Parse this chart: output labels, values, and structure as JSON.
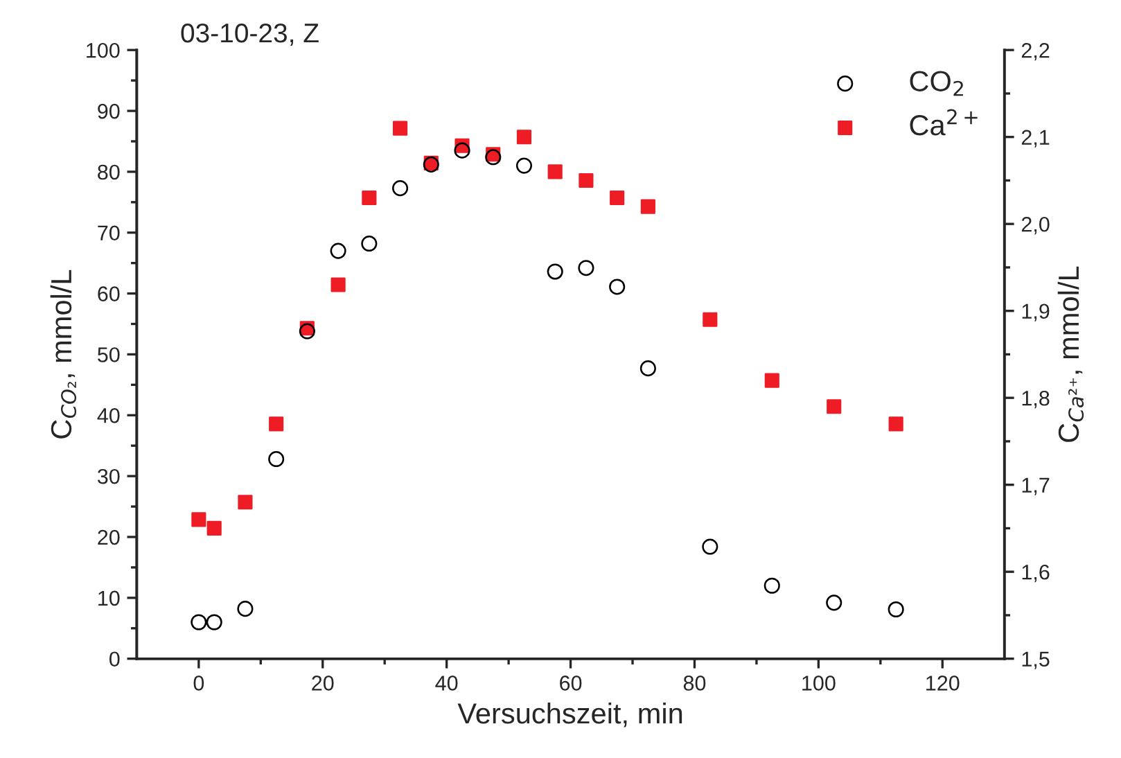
{
  "chart_data": {
    "type": "scatter",
    "title": "03-10-23, Z",
    "xlabel": "Versuchszeit, min",
    "ylabel": "C$_{CO₂}$, mmol/L",
    "y2label": "C$_{Ca²⁺}$, mmol/L",
    "x": [
      0,
      2.5,
      7.5,
      12.5,
      17.5,
      22.5,
      27.5,
      32.5,
      37.5,
      42.5,
      47.5,
      52.5,
      57.5,
      62.5,
      67.5,
      72.5,
      82.5,
      92.5,
      102.5,
      112.5
    ],
    "series": [
      {
        "name": "CO$_{2}$",
        "color": "#000000",
        "marker": "circle",
        "values": [
          6,
          6,
          8.2,
          32.8,
          53.8,
          67,
          68.2,
          77.3,
          81.2,
          83.5,
          82.4,
          81,
          63.6,
          64.2,
          61.1,
          47.7,
          18.4,
          12,
          9.2,
          8.1
        ]
      },
      {
        "name": "Ca$^{2+}$",
        "color": "#ee1c25",
        "marker": "square",
        "axis": "y2",
        "values": [
          1.66,
          1.65,
          1.68,
          1.77,
          1.88,
          1.93,
          2.03,
          2.11,
          2.07,
          2.09,
          2.08,
          2.1,
          2.06,
          2.05,
          2.03,
          2.02,
          1.89,
          1.82,
          1.79,
          1.77
        ]
      }
    ],
    "xlim": [
      -10,
      130
    ],
    "xticks": [
      0,
      20,
      40,
      60,
      80,
      100,
      120
    ],
    "ylim": [
      0,
      100
    ],
    "yticks": [
      0,
      10,
      20,
      30,
      40,
      50,
      60,
      70,
      80,
      90,
      100
    ],
    "y2lim": [
      1.5,
      2.2
    ],
    "y2ticks": [
      {
        "value": 1.5,
        "label": "1,5"
      },
      {
        "value": 1.6,
        "label": "1,6"
      },
      {
        "value": 1.7,
        "label": "1,7"
      },
      {
        "value": 1.8,
        "label": "1,8"
      },
      {
        "value": 1.9,
        "label": "1,9"
      },
      {
        "value": 2.0,
        "label": "2,0"
      },
      {
        "value": 2.1,
        "label": "2,1"
      },
      {
        "value": 2.2,
        "label": "2,2"
      }
    ],
    "legend": "top right",
    "grid": false
  }
}
